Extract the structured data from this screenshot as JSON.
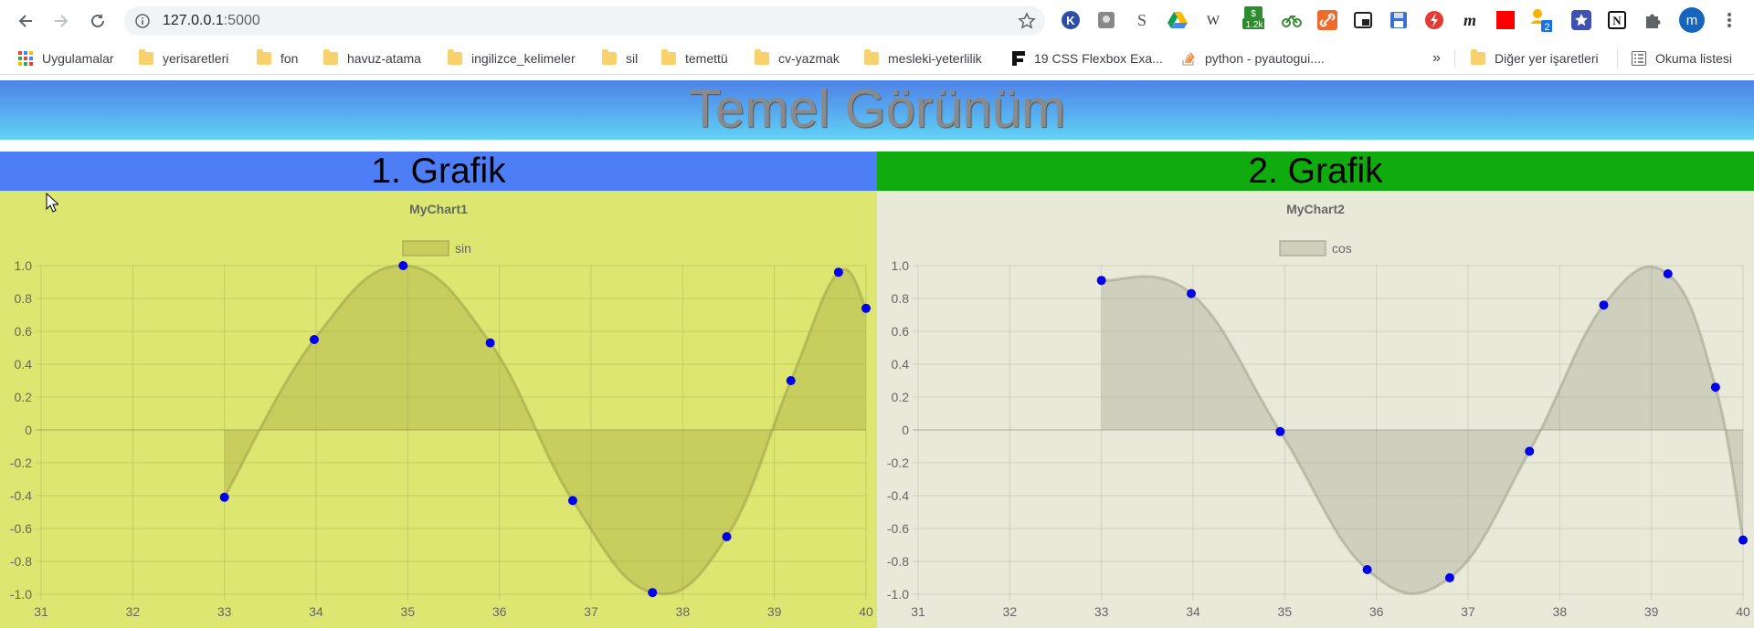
{
  "browser": {
    "url_host": "127.0.0.1",
    "url_port": ":5000",
    "profile_initial": "m"
  },
  "bookmarks": [
    {
      "label": "Uygulamalar",
      "type": "apps"
    },
    {
      "label": "yerisaretleri",
      "type": "folder"
    },
    {
      "label": "fon",
      "type": "folder"
    },
    {
      "label": "havuz-atama",
      "type": "folder"
    },
    {
      "label": "ingilizce_kelimeler",
      "type": "folder"
    },
    {
      "label": "sil",
      "type": "folder"
    },
    {
      "label": "temettü",
      "type": "folder"
    },
    {
      "label": "cv-yazmak",
      "type": "folder"
    },
    {
      "label": "mesleki-yeterlilik",
      "type": "folder"
    },
    {
      "label": "19 CSS Flexbox Exa...",
      "type": "page"
    },
    {
      "label": "python - pyautogui....",
      "type": "page"
    }
  ],
  "bookmarks_more": "»",
  "other_bookmarks": "Diğer yer işaretleri",
  "reading_list": "Okuma listesi",
  "extension_badge": "1.2k",
  "extension_badge2": "2",
  "page": {
    "title": "Temel Görünüm",
    "panel1_title": "1. Grafik",
    "panel2_title": "2. Grafik"
  },
  "colors": {
    "header_top": "#4f83e8",
    "header_bottom": "#63d3f5",
    "panel1_title_bg": "#4d7ef5",
    "panel2_title_bg": "#10ab0e",
    "panel1_bg": "#dce670",
    "panel2_bg": "#e8e9d8",
    "point_color": "#0000ee"
  },
  "chart_data": [
    {
      "type": "area",
      "title": "MyChart1",
      "series": [
        {
          "name": "sin",
          "x": [
            33.0,
            33.98,
            34.95,
            35.9,
            36.8,
            37.67,
            38.48,
            39.18,
            39.7,
            40.0
          ],
          "y": [
            -0.41,
            0.55,
            1.0,
            0.53,
            -0.43,
            -0.99,
            -0.65,
            0.3,
            0.96,
            0.74
          ]
        }
      ],
      "xlim": [
        31,
        40
      ],
      "ylim": [
        -1.0,
        1.0
      ],
      "x_ticks": [
        "31",
        "32",
        "33",
        "34",
        "35",
        "36",
        "37",
        "38",
        "39",
        "40"
      ],
      "y_ticks": [
        "1.0",
        "0.8",
        "0.6",
        "0.4",
        "0.2",
        "0",
        "-0.2",
        "-0.4",
        "-0.6",
        "-0.8",
        "-1.0"
      ],
      "grid": true,
      "legend": "top-center"
    },
    {
      "type": "area",
      "title": "MyChart2",
      "series": [
        {
          "name": "cos",
          "x": [
            33.0,
            33.98,
            34.95,
            35.9,
            36.8,
            37.67,
            38.48,
            39.18,
            39.7,
            40.0
          ],
          "y": [
            0.91,
            0.83,
            -0.01,
            -0.85,
            -0.9,
            -0.13,
            0.76,
            0.95,
            0.26,
            -0.67
          ]
        }
      ],
      "xlim": [
        31,
        40
      ],
      "ylim": [
        -1.0,
        1.0
      ],
      "x_ticks": [
        "31",
        "32",
        "33",
        "34",
        "35",
        "36",
        "37",
        "38",
        "39",
        "40"
      ],
      "y_ticks": [
        "1.0",
        "0.8",
        "0.6",
        "0.4",
        "0.2",
        "0",
        "-0.2",
        "-0.4",
        "-0.6",
        "-0.8",
        "-1.0"
      ],
      "grid": true,
      "legend": "top-center"
    }
  ]
}
